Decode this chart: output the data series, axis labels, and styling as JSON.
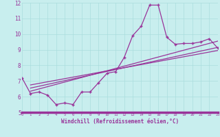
{
  "xlabel": "Windchill (Refroidissement éolien,°C)",
  "background_color": "#c8eeee",
  "line_color": "#993399",
  "xlim": [
    0,
    23
  ],
  "ylim": [
    5,
    12
  ],
  "xticks": [
    0,
    1,
    2,
    3,
    4,
    5,
    6,
    7,
    8,
    9,
    10,
    11,
    12,
    13,
    14,
    15,
    16,
    17,
    18,
    19,
    20,
    21,
    22,
    23
  ],
  "yticks": [
    5,
    6,
    7,
    8,
    9,
    10,
    11,
    12
  ],
  "grid_color": "#aadddd",
  "series": {
    "main": {
      "x": [
        0,
        1,
        2,
        3,
        4,
        5,
        6,
        7,
        8,
        9,
        10,
        11,
        12,
        13,
        14,
        15,
        16,
        17,
        18,
        19,
        20,
        21,
        22,
        23
      ],
      "y": [
        7.2,
        6.2,
        6.3,
        6.1,
        5.5,
        5.6,
        5.5,
        6.3,
        6.3,
        6.9,
        7.5,
        7.6,
        8.5,
        9.9,
        10.5,
        11.85,
        11.85,
        9.8,
        9.35,
        9.4,
        9.4,
        9.5,
        9.7,
        9.1
      ]
    },
    "linear1": {
      "x": [
        1,
        23
      ],
      "y": [
        6.35,
        9.55
      ]
    },
    "linear2": {
      "x": [
        1,
        23
      ],
      "y": [
        6.55,
        9.15
      ]
    },
    "linear3": {
      "x": [
        1,
        23
      ],
      "y": [
        6.75,
        8.95
      ]
    }
  }
}
